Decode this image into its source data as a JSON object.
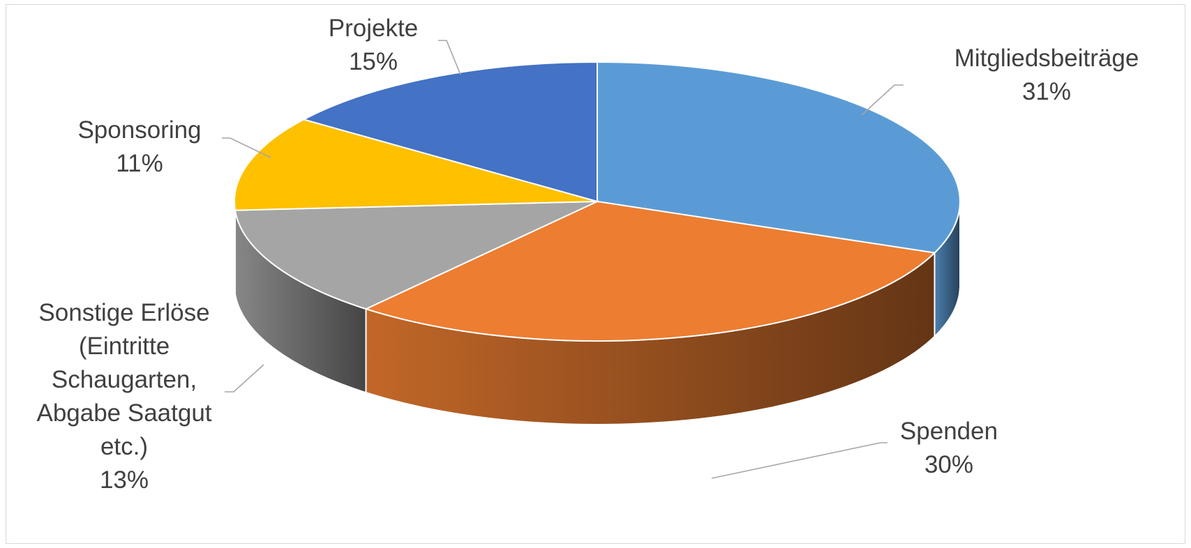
{
  "chart_data": {
    "type": "pie",
    "style": "3d",
    "start_angle_deg": 90,
    "direction": "clockwise",
    "slices": [
      {
        "name": "Mitgliedsbeiträge",
        "name_lines": [
          "Mitgliedsbeiträge"
        ],
        "value": 31,
        "label": "31%",
        "color": "#5B9BD5"
      },
      {
        "name": "Spenden",
        "name_lines": [
          "Spenden"
        ],
        "value": 30,
        "label": "30%",
        "color": "#ED7D31"
      },
      {
        "name": "Sonstige Erlöse (Eintritte Schaugarten, Abgabe Saatgut etc.)",
        "name_lines": [
          "Sonstige Erlöse",
          "(Eintritte",
          "Schaugarten,",
          "Abgabe Saatgut",
          "etc.)"
        ],
        "value": 13,
        "label": "13%",
        "color": "#A5A5A5"
      },
      {
        "name": "Sponsoring",
        "name_lines": [
          "Sponsoring"
        ],
        "value": 11,
        "label": "11%",
        "color": "#FFC000"
      },
      {
        "name": "Projekte",
        "name_lines": [
          "Projekte"
        ],
        "value": 15,
        "label": "15%",
        "color": "#4472C4"
      }
    ],
    "data_labels": "category-and-percent",
    "leader_lines": true,
    "legend": "none"
  }
}
